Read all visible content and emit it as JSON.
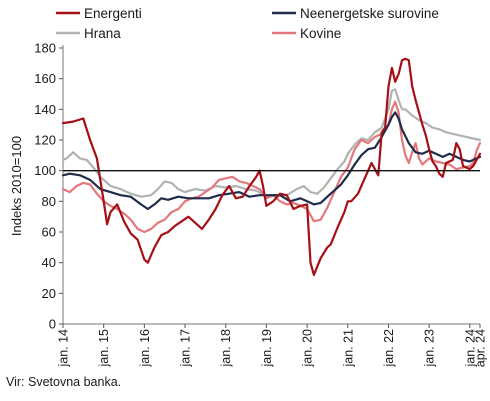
{
  "source": "Vir: Svetovna banka.",
  "chart_data": {
    "type": "line",
    "ylabel": "Indeks 2010=100",
    "xlabel": "",
    "ylim": [
      0,
      180
    ],
    "yticks": [
      0,
      20,
      40,
      60,
      80,
      100,
      120,
      140,
      160,
      180
    ],
    "reference_line": 100,
    "x_start": "2014-01",
    "x_end": "2024-04",
    "xtick_labels": [
      {
        "label": "jan. 14",
        "month_index": 0
      },
      {
        "label": "jan. 15",
        "month_index": 12
      },
      {
        "label": "jan. 16",
        "month_index": 24
      },
      {
        "label": "jan. 17",
        "month_index": 36
      },
      {
        "label": "jan. 18",
        "month_index": 48
      },
      {
        "label": "jan. 19",
        "month_index": 60
      },
      {
        "label": "jan. 20",
        "month_index": 72
      },
      {
        "label": "jan. 21",
        "month_index": 84
      },
      {
        "label": "jan. 22",
        "month_index": 96
      },
      {
        "label": "jan. 23",
        "month_index": 108
      },
      {
        "label": "jan. 24",
        "month_index": 120
      },
      {
        "label": "apr. 24",
        "month_index": 123
      }
    ],
    "legend_position": "top",
    "series": [
      {
        "name": "Energenti",
        "color": "#a50f15",
        "width": 2.2,
        "keypoints": [
          [
            0,
            131
          ],
          [
            3,
            132
          ],
          [
            6,
            134
          ],
          [
            8,
            120
          ],
          [
            10,
            108
          ],
          [
            12,
            80
          ],
          [
            13,
            65
          ],
          [
            14,
            73
          ],
          [
            16,
            78
          ],
          [
            18,
            67
          ],
          [
            20,
            59
          ],
          [
            22,
            55
          ],
          [
            24,
            42
          ],
          [
            25,
            40
          ],
          [
            27,
            50
          ],
          [
            29,
            58
          ],
          [
            31,
            60
          ],
          [
            33,
            64
          ],
          [
            35,
            67
          ],
          [
            37,
            70
          ],
          [
            39,
            66
          ],
          [
            41,
            62
          ],
          [
            43,
            68
          ],
          [
            45,
            75
          ],
          [
            47,
            84
          ],
          [
            49,
            90
          ],
          [
            51,
            82
          ],
          [
            53,
            83
          ],
          [
            55,
            90
          ],
          [
            57,
            96
          ],
          [
            58,
            100
          ],
          [
            59,
            90
          ],
          [
            60,
            77
          ],
          [
            62,
            80
          ],
          [
            64,
            85
          ],
          [
            66,
            84
          ],
          [
            68,
            75
          ],
          [
            70,
            77
          ],
          [
            72,
            78
          ],
          [
            73,
            40
          ],
          [
            74,
            32
          ],
          [
            76,
            43
          ],
          [
            78,
            50
          ],
          [
            79,
            52
          ],
          [
            81,
            63
          ],
          [
            83,
            73
          ],
          [
            84,
            80
          ],
          [
            85,
            80
          ],
          [
            87,
            85
          ],
          [
            89,
            95
          ],
          [
            91,
            105
          ],
          [
            93,
            97
          ],
          [
            94,
            125
          ],
          [
            95,
            128
          ],
          [
            96,
            155
          ],
          [
            97,
            167
          ],
          [
            98,
            158
          ],
          [
            99,
            163
          ],
          [
            100,
            172
          ],
          [
            101,
            173
          ],
          [
            102,
            172
          ],
          [
            103,
            155
          ],
          [
            104,
            146
          ],
          [
            105,
            138
          ],
          [
            106,
            130
          ],
          [
            107,
            123
          ],
          [
            108,
            114
          ],
          [
            109,
            106
          ],
          [
            110,
            103
          ],
          [
            111,
            98
          ],
          [
            112,
            96
          ],
          [
            113,
            105
          ],
          [
            115,
            107
          ],
          [
            116,
            118
          ],
          [
            117,
            114
          ],
          [
            118,
            103
          ],
          [
            120,
            101
          ],
          [
            121,
            103
          ],
          [
            122,
            107
          ],
          [
            123,
            111
          ]
        ]
      },
      {
        "name": "Neenergetske surovine",
        "color": "#1f2d4b",
        "width": 2.2,
        "keypoints": [
          [
            0,
            97
          ],
          [
            2,
            98
          ],
          [
            5,
            97
          ],
          [
            8,
            94
          ],
          [
            11,
            88
          ],
          [
            14,
            86
          ],
          [
            17,
            84
          ],
          [
            20,
            83
          ],
          [
            23,
            78
          ],
          [
            25,
            75
          ],
          [
            27,
            78
          ],
          [
            29,
            82
          ],
          [
            31,
            81
          ],
          [
            34,
            83
          ],
          [
            37,
            82
          ],
          [
            40,
            82
          ],
          [
            43,
            82
          ],
          [
            46,
            84
          ],
          [
            49,
            85
          ],
          [
            52,
            86
          ],
          [
            55,
            83
          ],
          [
            58,
            84
          ],
          [
            61,
            84
          ],
          [
            64,
            84
          ],
          [
            67,
            80
          ],
          [
            70,
            82
          ],
          [
            72,
            80
          ],
          [
            74,
            78
          ],
          [
            76,
            79
          ],
          [
            78,
            83
          ],
          [
            80,
            87
          ],
          [
            82,
            91
          ],
          [
            84,
            97
          ],
          [
            86,
            104
          ],
          [
            88,
            110
          ],
          [
            90,
            114
          ],
          [
            92,
            115
          ],
          [
            94,
            122
          ],
          [
            96,
            130
          ],
          [
            97,
            135
          ],
          [
            98,
            138
          ],
          [
            99,
            134
          ],
          [
            100,
            127
          ],
          [
            102,
            118
          ],
          [
            104,
            112
          ],
          [
            106,
            111
          ],
          [
            108,
            113
          ],
          [
            110,
            111
          ],
          [
            112,
            109
          ],
          [
            114,
            111
          ],
          [
            116,
            109
          ],
          [
            118,
            107
          ],
          [
            120,
            106
          ],
          [
            121,
            107
          ],
          [
            122,
            108
          ],
          [
            123,
            109
          ]
        ]
      },
      {
        "name": "Hrana",
        "color": "#b2b2b2",
        "width": 2.2,
        "keypoints": [
          [
            0,
            107
          ],
          [
            1,
            108
          ],
          [
            3,
            112
          ],
          [
            5,
            108
          ],
          [
            7,
            107
          ],
          [
            9,
            102
          ],
          [
            11,
            96
          ],
          [
            14,
            90
          ],
          [
            17,
            88
          ],
          [
            20,
            85
          ],
          [
            23,
            83
          ],
          [
            26,
            84
          ],
          [
            28,
            88
          ],
          [
            30,
            93
          ],
          [
            32,
            92
          ],
          [
            34,
            88
          ],
          [
            36,
            86
          ],
          [
            39,
            88
          ],
          [
            42,
            87
          ],
          [
            45,
            90
          ],
          [
            48,
            89
          ],
          [
            51,
            90
          ],
          [
            54,
            88
          ],
          [
            57,
            87
          ],
          [
            60,
            83
          ],
          [
            63,
            84
          ],
          [
            66,
            84
          ],
          [
            69,
            88
          ],
          [
            71,
            90
          ],
          [
            73,
            86
          ],
          [
            75,
            85
          ],
          [
            77,
            89
          ],
          [
            79,
            95
          ],
          [
            81,
            101
          ],
          [
            83,
            106
          ],
          [
            84,
            111
          ],
          [
            86,
            117
          ],
          [
            88,
            121
          ],
          [
            90,
            120
          ],
          [
            92,
            125
          ],
          [
            94,
            128
          ],
          [
            96,
            140
          ],
          [
            97,
            152
          ],
          [
            98,
            153
          ],
          [
            99,
            146
          ],
          [
            100,
            140
          ],
          [
            101,
            140
          ],
          [
            103,
            136
          ],
          [
            105,
            133
          ],
          [
            107,
            131
          ],
          [
            109,
            128
          ],
          [
            111,
            127
          ],
          [
            113,
            125
          ],
          [
            115,
            124
          ],
          [
            117,
            123
          ],
          [
            119,
            122
          ],
          [
            121,
            121
          ],
          [
            123,
            120
          ]
        ]
      },
      {
        "name": "Kovine",
        "color": "#e4777c",
        "width": 2.2,
        "keypoints": [
          [
            0,
            88
          ],
          [
            2,
            86
          ],
          [
            4,
            90
          ],
          [
            6,
            92
          ],
          [
            8,
            91
          ],
          [
            10,
            85
          ],
          [
            12,
            80
          ],
          [
            14,
            77
          ],
          [
            16,
            75
          ],
          [
            18,
            72
          ],
          [
            20,
            68
          ],
          [
            22,
            62
          ],
          [
            24,
            60
          ],
          [
            26,
            62
          ],
          [
            28,
            66
          ],
          [
            30,
            68
          ],
          [
            32,
            73
          ],
          [
            34,
            75
          ],
          [
            36,
            80
          ],
          [
            38,
            82
          ],
          [
            40,
            83
          ],
          [
            42,
            86
          ],
          [
            44,
            89
          ],
          [
            46,
            94
          ],
          [
            48,
            95
          ],
          [
            50,
            96
          ],
          [
            52,
            93
          ],
          [
            54,
            92
          ],
          [
            56,
            90
          ],
          [
            58,
            88
          ],
          [
            60,
            82
          ],
          [
            62,
            84
          ],
          [
            64,
            80
          ],
          [
            66,
            78
          ],
          [
            68,
            79
          ],
          [
            70,
            77
          ],
          [
            72,
            75
          ],
          [
            74,
            67
          ],
          [
            76,
            68
          ],
          [
            78,
            76
          ],
          [
            80,
            86
          ],
          [
            82,
            96
          ],
          [
            84,
            102
          ],
          [
            86,
            114
          ],
          [
            88,
            120
          ],
          [
            90,
            118
          ],
          [
            92,
            122
          ],
          [
            94,
            124
          ],
          [
            96,
            130
          ],
          [
            97,
            140
          ],
          [
            98,
            145
          ],
          [
            99,
            138
          ],
          [
            100,
            120
          ],
          [
            101,
            110
          ],
          [
            102,
            105
          ],
          [
            103,
            112
          ],
          [
            104,
            118
          ],
          [
            105,
            108
          ],
          [
            106,
            104
          ],
          [
            108,
            108
          ],
          [
            110,
            106
          ],
          [
            112,
            105
          ],
          [
            114,
            104
          ],
          [
            116,
            101
          ],
          [
            118,
            102
          ],
          [
            120,
            103
          ],
          [
            121,
            105
          ],
          [
            122,
            113
          ],
          [
            123,
            118
          ]
        ]
      }
    ]
  }
}
